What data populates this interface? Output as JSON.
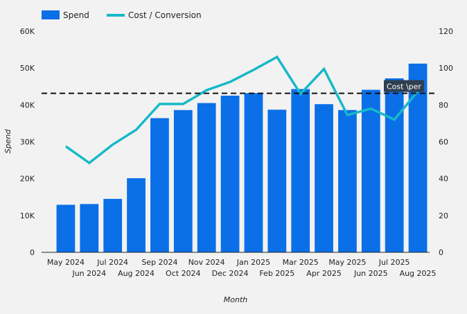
{
  "chart_data": {
    "type": "bar",
    "title": "",
    "categories": [
      "May 2024",
      "Jun 2024",
      "Jul 2024",
      "Aug 2024",
      "Sep 2024",
      "Oct 2024",
      "Nov 2024",
      "Dec 2024",
      "Jan 2025",
      "Feb 2025",
      "Mar 2025",
      "Apr 2025",
      "May 2025",
      "Jun 2025",
      "Jul 2025",
      "Aug 2025"
    ],
    "series": [
      {
        "name": "Spend",
        "type": "bar",
        "axis": "left",
        "color": "#0b6fe8",
        "values": [
          12900,
          13100,
          14500,
          20100,
          36400,
          38600,
          40500,
          42500,
          43200,
          38700,
          44300,
          40200,
          38600,
          44100,
          47200,
          51200
        ]
      },
      {
        "name": "Cost / Conversion",
        "type": "line",
        "axis": "right",
        "color": "#16b9c8",
        "values": [
          57.5,
          48.5,
          58.5,
          66.5,
          80.5,
          80.5,
          88,
          92.5,
          99,
          106,
          86,
          99.5,
          74.5,
          78,
          72,
          87.5
        ]
      }
    ],
    "xlabel": "Month",
    "ylabel": "Spend",
    "ylim": [
      0,
      60000
    ],
    "y_ticks": [
      "0",
      "10K",
      "20K",
      "30K",
      "40K",
      "50K",
      "60K"
    ],
    "y2lim": [
      0,
      120
    ],
    "y2_ticks": [
      "0",
      "20",
      "40",
      "60",
      "80",
      "100",
      "120"
    ],
    "reference_line": {
      "value": 86.3,
      "axis": "right",
      "label": "Cost \\per",
      "style": "dashed",
      "color": "#111111"
    },
    "legend_position": "top-left"
  }
}
